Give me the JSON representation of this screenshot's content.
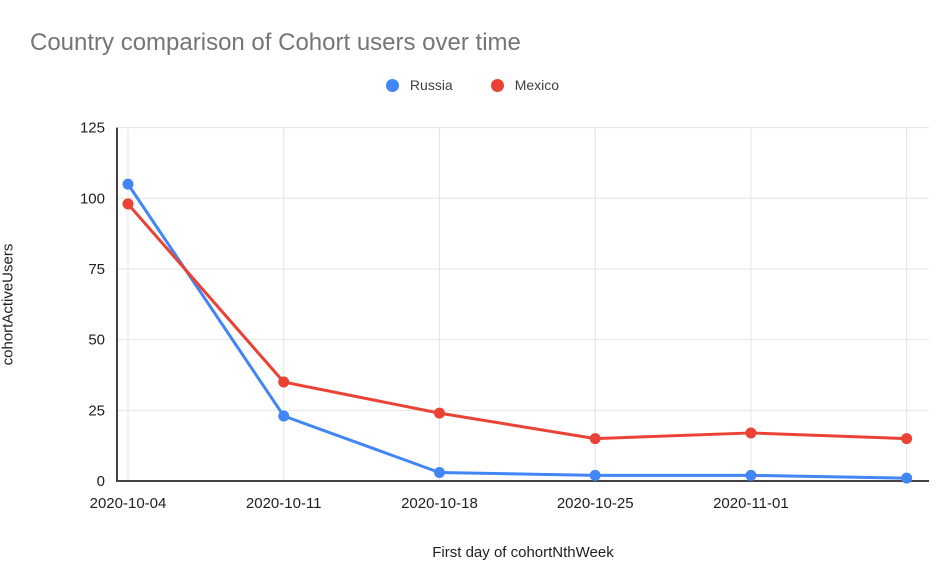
{
  "chart_data": {
    "type": "line",
    "title": "Country comparison of Cohort users over time",
    "xlabel": "First day of cohortNthWeek",
    "ylabel": "cohortActiveUsers",
    "categories": [
      "2020-10-04",
      "2020-10-11",
      "2020-10-18",
      "2020-10-25",
      "2020-11-01",
      ""
    ],
    "y_ticks": [
      0,
      25,
      50,
      75,
      100,
      125
    ],
    "ylim": [
      0,
      125
    ],
    "grid": true,
    "legend_position": "top-center",
    "series": [
      {
        "name": "Russia",
        "color": "#4285F4",
        "values": [
          105,
          23,
          3,
          2,
          2,
          1
        ]
      },
      {
        "name": "Mexico",
        "color": "#EA4335",
        "values": [
          98,
          35,
          24,
          15,
          17,
          15
        ]
      }
    ],
    "grid_color": "#e4e4e4",
    "axis_color": "#424242"
  }
}
